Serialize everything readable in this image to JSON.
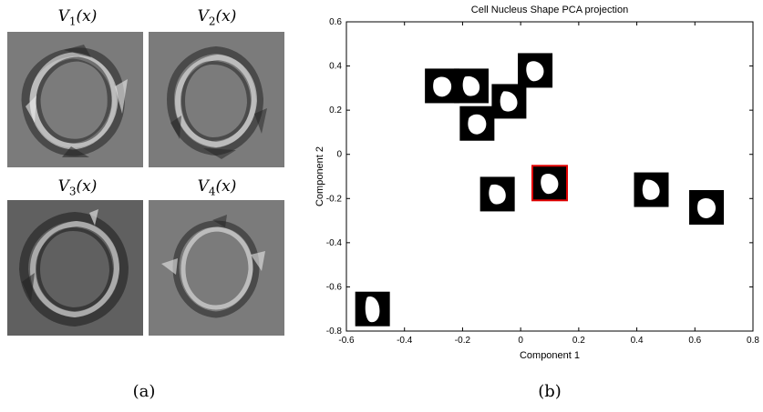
{
  "figure_a": {
    "caption": "(a)",
    "panels": [
      {
        "title": "V",
        "sub": "1",
        "arg": "(x)",
        "bg": "#7b7b7b"
      },
      {
        "title": "V",
        "sub": "2",
        "arg": "(x)",
        "bg": "#7b7b7b"
      },
      {
        "title": "V",
        "sub": "3",
        "arg": "(x)",
        "bg": "#606060"
      },
      {
        "title": "V",
        "sub": "4",
        "arg": "(x)",
        "bg": "#7b7b7b"
      }
    ]
  },
  "figure_b": {
    "caption": "(b)"
  },
  "chart_data": {
    "type": "scatter",
    "title": "Cell Nucleus Shape PCA projection",
    "xlabel": "Component 1",
    "ylabel": "Component 2",
    "xlim": [
      -0.6,
      0.8
    ],
    "ylim": [
      -0.8,
      0.6
    ],
    "x_ticks": [
      "-0.6",
      "-0.4",
      "-0.2",
      "0",
      "0.2",
      "0.4",
      "0.6",
      "0.8"
    ],
    "y_ticks": [
      "0.6",
      "0.4",
      "0.2",
      "0",
      "-0.2",
      "-0.4",
      "-0.6",
      "-0.8"
    ],
    "points": [
      {
        "x": -0.27,
        "y": 0.31,
        "highlight": false
      },
      {
        "x": -0.17,
        "y": 0.31,
        "highlight": false
      },
      {
        "x": 0.05,
        "y": 0.38,
        "highlight": false
      },
      {
        "x": -0.04,
        "y": 0.24,
        "highlight": false
      },
      {
        "x": -0.15,
        "y": 0.14,
        "highlight": false
      },
      {
        "x": -0.08,
        "y": -0.18,
        "highlight": false
      },
      {
        "x": 0.1,
        "y": -0.13,
        "highlight": true
      },
      {
        "x": 0.45,
        "y": -0.16,
        "highlight": false
      },
      {
        "x": 0.64,
        "y": -0.24,
        "highlight": false
      },
      {
        "x": -0.51,
        "y": -0.7,
        "highlight": false
      }
    ],
    "highlight_color": "#e00000"
  }
}
